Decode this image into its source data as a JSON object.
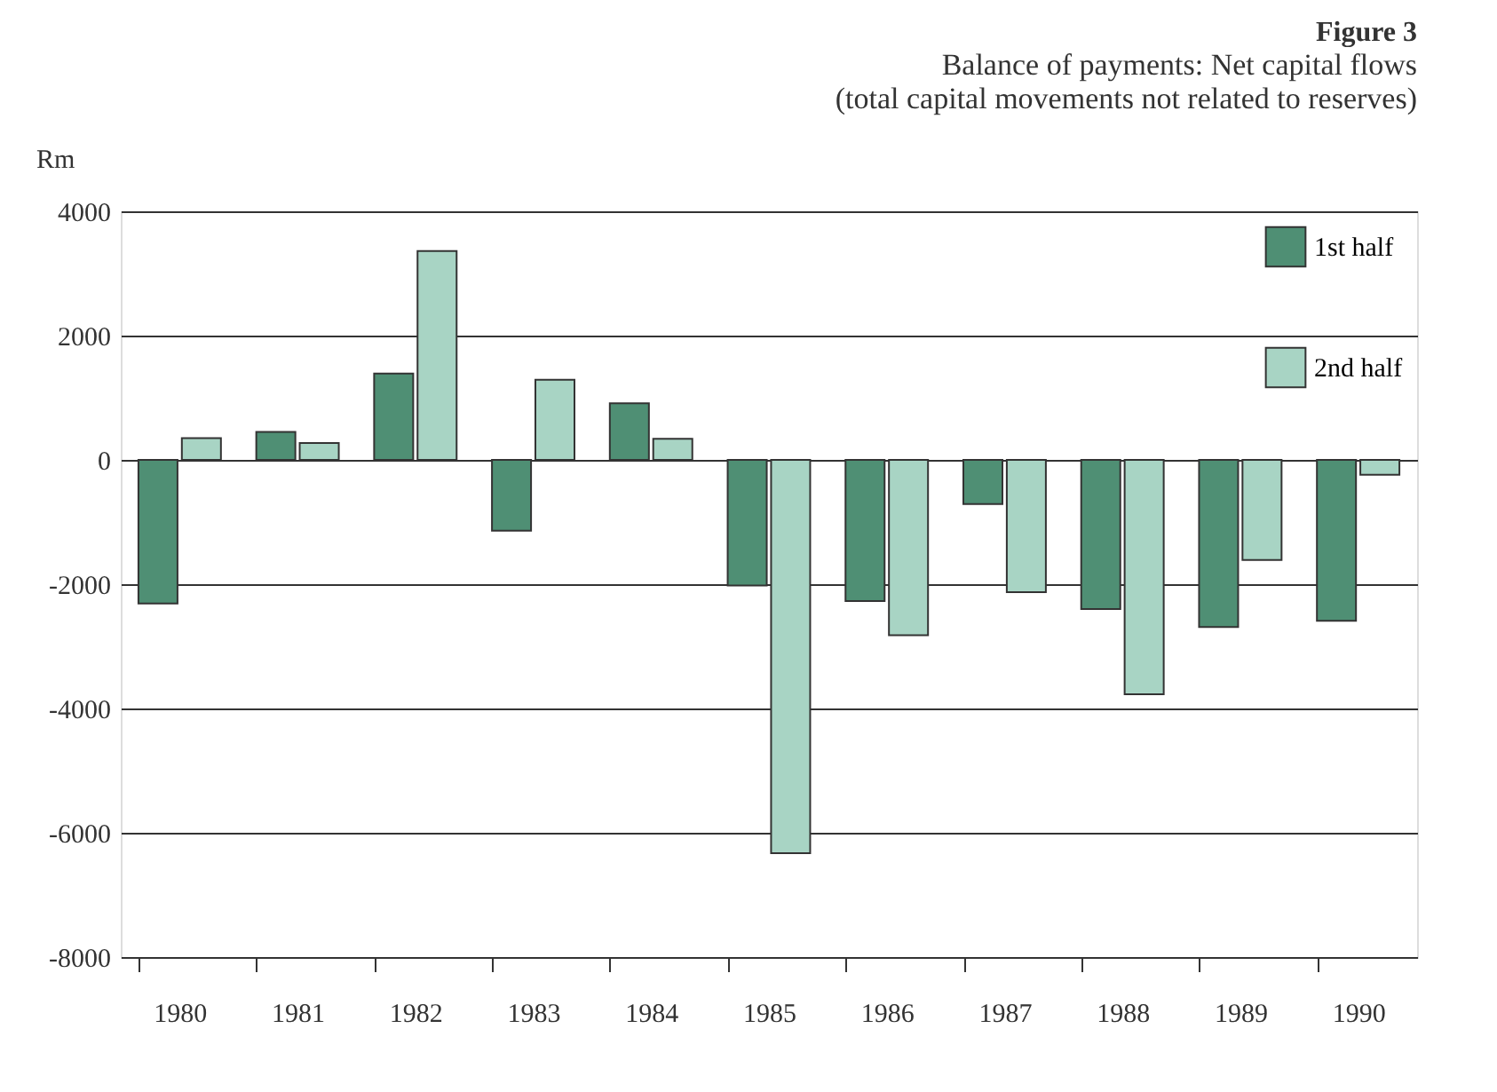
{
  "chart_data": {
    "type": "bar",
    "title": "Figure 3",
    "subtitle": "Balance of payments: Net capital flows\n(total capital movements not related to reserves)",
    "ylabel": "Rm",
    "categories": [
      "1980",
      "1981",
      "1982",
      "1983",
      "1984",
      "1985",
      "1986",
      "1987",
      "1988",
      "1989",
      "1990"
    ],
    "series": [
      {
        "name": "1st half",
        "color": "#4f8f74",
        "values": [
          -2310,
          450,
          1390,
          -1140,
          910,
          -2020,
          -2270,
          -710,
          -2400,
          -2690,
          -2590
        ]
      },
      {
        "name": "2nd half",
        "color": "#a8d4c4",
        "values": [
          350,
          270,
          3360,
          1290,
          340,
          -6330,
          -2820,
          -2130,
          -3770,
          -1610,
          -240
        ]
      }
    ],
    "ylim": [
      -8000,
      4000
    ],
    "yticks": [
      -8000,
      -6000,
      -4000,
      -2000,
      0,
      2000,
      4000
    ],
    "grid": "y",
    "legend": "top right"
  }
}
